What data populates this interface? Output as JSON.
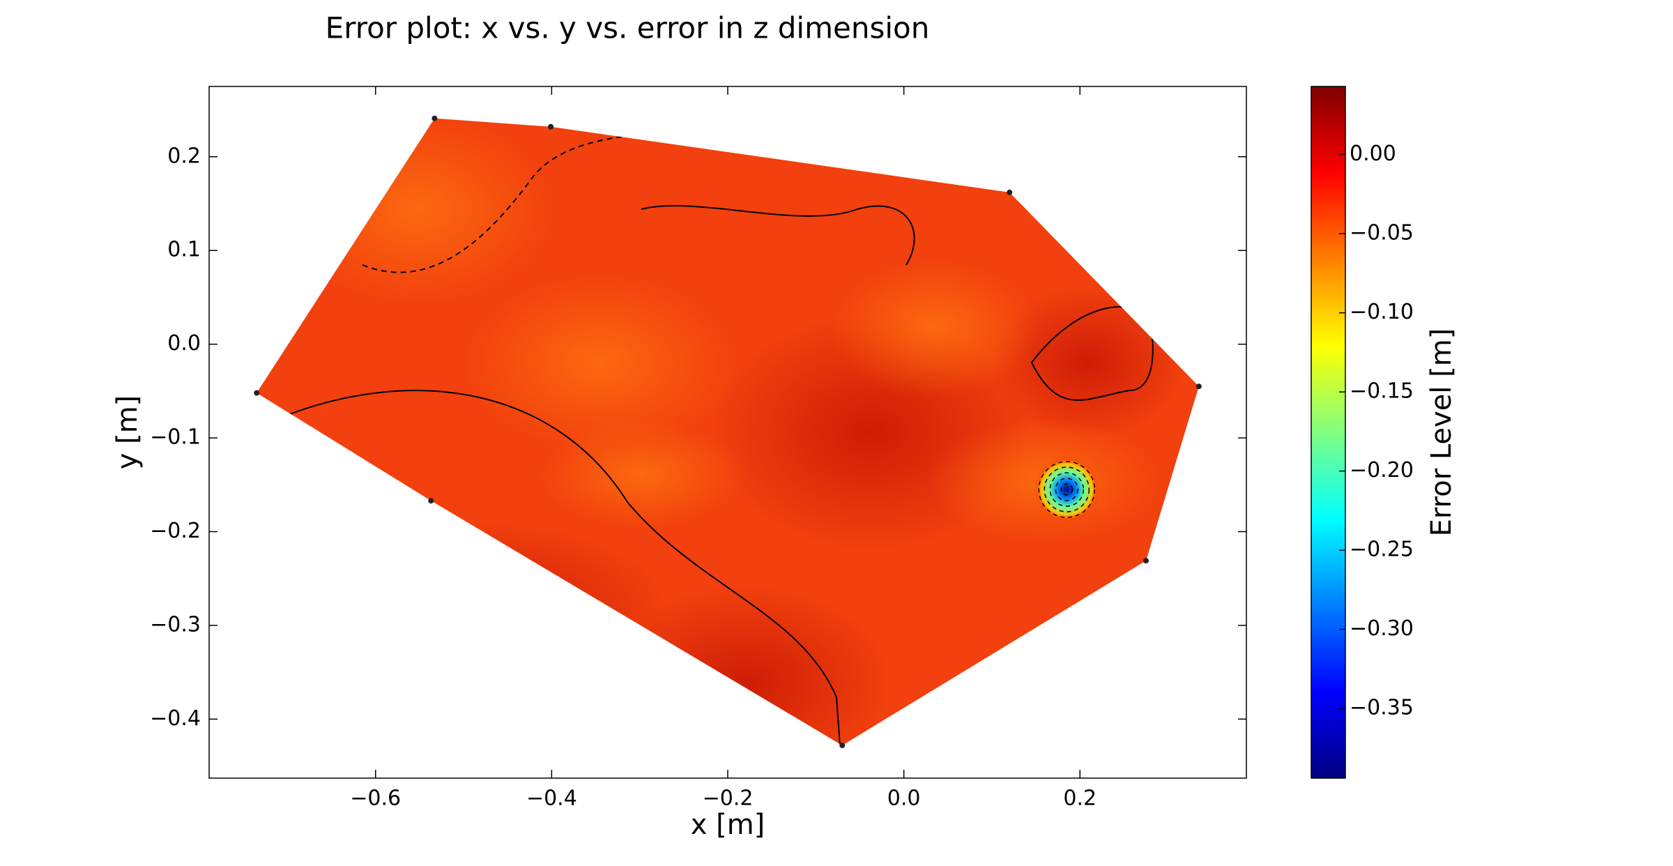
{
  "chart_data": {
    "type": "contour",
    "title": "Error plot: x vs. y vs. error in z dimension",
    "x_label": "x [m]",
    "y_label": "y [m]",
    "colorbar_label": "Error Level [m]",
    "colormap": "jet",
    "x": [
      -0.533,
      -0.401,
      0.12,
      0.335,
      0.275,
      -0.07,
      -0.537,
      -0.735
    ],
    "y": [
      0.241,
      0.232,
      0.162,
      -0.045,
      -0.231,
      -0.428,
      -0.167,
      -0.052
    ],
    "minimum": {
      "x": 0.185,
      "y": -0.155,
      "z": -0.394
    },
    "xlim": [
      -0.789,
      0.389
    ],
    "ylim": [
      -0.463,
      0.275
    ],
    "zlim": [
      -0.394,
      0.043
    ],
    "xticks": [
      {
        "value": -0.6,
        "label": "−0.6"
      },
      {
        "value": -0.4,
        "label": "−0.4"
      },
      {
        "value": -0.2,
        "label": "−0.2"
      },
      {
        "value": 0,
        "label": "0.0"
      },
      0.2
    ],
    "yticks": [
      0.2,
      0.1,
      {
        "value": 0,
        "label": "0.0"
      },
      {
        "value": -0.1,
        "label": "−0.1"
      },
      {
        "value": -0.2,
        "label": "−0.2"
      },
      {
        "value": -0.3,
        "label": "−0.3"
      },
      {
        "value": -0.4,
        "label": "−0.4"
      }
    ],
    "zticks": [
      {
        "value": 0,
        "label": "0.00"
      },
      {
        "value": -0.05,
        "label": "−0.05"
      },
      {
        "value": -0.1,
        "label": "−0.10"
      },
      {
        "value": -0.15,
        "label": "−0.15"
      },
      {
        "value": -0.2,
        "label": "−0.20"
      },
      {
        "value": -0.25,
        "label": "−0.25"
      },
      {
        "value": -0.3,
        "label": "−0.30"
      },
      {
        "value": -0.35,
        "label": "−0.35"
      }
    ]
  }
}
